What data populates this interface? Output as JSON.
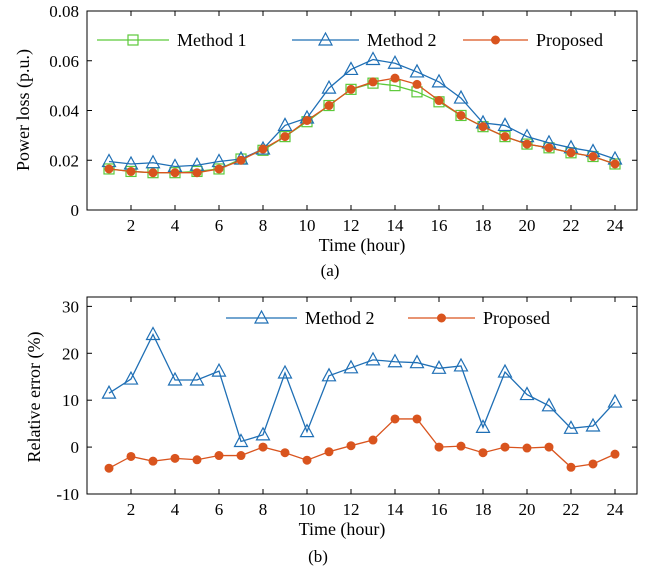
{
  "chart_data": [
    {
      "type": "line",
      "caption": "(a)",
      "xlabel": "Time (hour)",
      "ylabel": "Power loss (p.u.)",
      "xlim": [
        0,
        25
      ],
      "ylim": [
        0,
        0.08
      ],
      "xticks": [
        2,
        4,
        6,
        8,
        10,
        12,
        14,
        16,
        18,
        20,
        22,
        24
      ],
      "xtick_labels": [
        "2",
        "4",
        "6",
        "8",
        "10",
        "12",
        "14",
        "16",
        "18",
        "20",
        "22",
        "24"
      ],
      "yticks": [
        0,
        0.02,
        0.04,
        0.06,
        0.08
      ],
      "ytick_labels": [
        "0",
        "0.02",
        "0.04",
        "0.06",
        "0.08"
      ],
      "legend_position": "top, horizontal",
      "x": [
        1,
        2,
        3,
        4,
        5,
        6,
        7,
        8,
        9,
        10,
        11,
        12,
        13,
        14,
        15,
        16,
        17,
        18,
        19,
        20,
        21,
        22,
        23,
        24
      ],
      "series": [
        {
          "name": "Method 1",
          "color": "#5cc93a",
          "marker": "square",
          "values": [
            0.0165,
            0.0155,
            0.015,
            0.015,
            0.0155,
            0.0165,
            0.0205,
            0.024,
            0.0295,
            0.0355,
            0.042,
            0.0485,
            0.051,
            0.05,
            0.0475,
            0.0435,
            0.038,
            0.0335,
            0.0295,
            0.0265,
            0.025,
            0.023,
            0.0215,
            0.0185
          ]
        },
        {
          "name": "Method 2",
          "color": "#1f6fb5",
          "marker": "triangle",
          "values": [
            0.0195,
            0.0185,
            0.019,
            0.0175,
            0.018,
            0.0195,
            0.0205,
            0.0245,
            0.034,
            0.037,
            0.049,
            0.0565,
            0.0605,
            0.059,
            0.0555,
            0.0515,
            0.045,
            0.035,
            0.034,
            0.0295,
            0.027,
            0.025,
            0.0235,
            0.0205
          ]
        },
        {
          "name": "Proposed",
          "color": "#d9541e",
          "marker": "circle",
          "values": [
            0.0165,
            0.0155,
            0.015,
            0.015,
            0.015,
            0.0165,
            0.02,
            0.0245,
            0.0295,
            0.036,
            0.042,
            0.0485,
            0.0515,
            0.053,
            0.0505,
            0.044,
            0.038,
            0.0335,
            0.0295,
            0.0265,
            0.025,
            0.023,
            0.0215,
            0.0185
          ]
        }
      ]
    },
    {
      "type": "line",
      "caption": "(b)",
      "xlabel": "Time (hour)",
      "ylabel": "Relative error (%)",
      "xlim": [
        0,
        25
      ],
      "ylim": [
        -10,
        32
      ],
      "xticks": [
        2,
        4,
        6,
        8,
        10,
        12,
        14,
        16,
        18,
        20,
        22,
        24
      ],
      "xtick_labels": [
        "2",
        "4",
        "6",
        "8",
        "10",
        "12",
        "14",
        "16",
        "18",
        "20",
        "22",
        "24"
      ],
      "yticks": [
        -10,
        0,
        10,
        20,
        30
      ],
      "ytick_labels": [
        "-10",
        "0",
        "10",
        "20",
        "30"
      ],
      "legend_position": "top, horizontal",
      "x": [
        1,
        2,
        3,
        4,
        5,
        6,
        7,
        8,
        9,
        10,
        11,
        12,
        13,
        14,
        15,
        16,
        17,
        18,
        19,
        20,
        21,
        22,
        23,
        24
      ],
      "series": [
        {
          "name": "Method 2",
          "color": "#1f6fb5",
          "marker": "triangle",
          "values": [
            11.5,
            14.5,
            24,
            14.3,
            14.3,
            16.2,
            1.2,
            2.6,
            15.8,
            3.3,
            15.2,
            16.9,
            18.6,
            18.2,
            18,
            16.8,
            17.3,
            4.2,
            16,
            11.2,
            8.8,
            4,
            4.5,
            9.6
          ]
        },
        {
          "name": "Proposed",
          "color": "#d9541e",
          "marker": "circle",
          "values": [
            -4.5,
            -2,
            -3,
            -2.4,
            -2.7,
            -1.8,
            -1.8,
            0,
            -1.2,
            -2.8,
            -1,
            0.3,
            1.5,
            6,
            6,
            0,
            0.2,
            -1.2,
            0,
            -0.2,
            0,
            -4.3,
            -3.6,
            -1.5
          ]
        }
      ]
    }
  ]
}
